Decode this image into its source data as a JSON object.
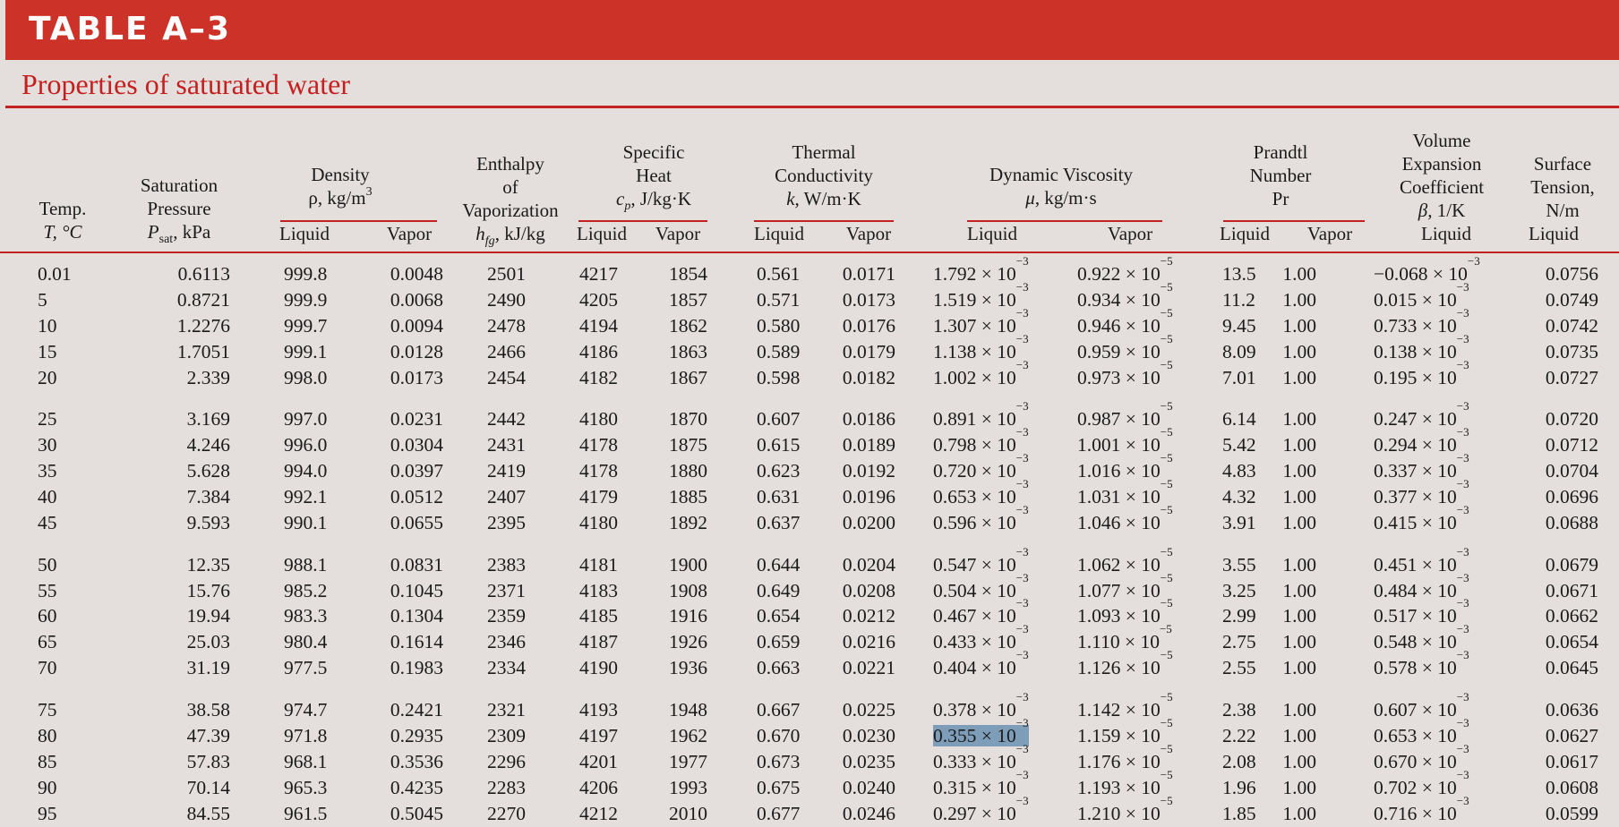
{
  "header": {
    "table_label": "TABLE A–3",
    "subtitle": "Properties of saturated water"
  },
  "columns": {
    "temp": [
      "Temp.",
      "T, °C"
    ],
    "psat": [
      "Saturation",
      "Pressure",
      "P",
      "sat",
      ", kPa"
    ],
    "density": [
      "Density",
      "ρ, kg/m",
      "3"
    ],
    "enthalpy": [
      "Enthalpy",
      "of",
      "Vaporization",
      "h",
      "fg",
      ", kJ/kg"
    ],
    "cp": [
      "Specific",
      "Heat",
      "c",
      "p",
      ", J/kg·K"
    ],
    "k": [
      "Thermal",
      "Conductivity",
      "k,",
      " W/m·K"
    ],
    "mu": [
      "Dynamic Viscosity",
      "μ",
      ", kg/m·s"
    ],
    "pr": [
      "Prandtl",
      "Number",
      "Pr"
    ],
    "beta": [
      "Volume",
      "Expansion",
      "Coefficient",
      "β,",
      " 1/K"
    ],
    "sigma": [
      "Surface",
      "Tension,",
      "N/m"
    ],
    "liquid": "Liquid",
    "vapor": "Vapor"
  },
  "exp_mu_l": "−3",
  "exp_mu_v": "−5",
  "exp_beta": "−3",
  "times": " × 10",
  "rows": [
    [
      "0.01",
      "0.6113",
      "999.8",
      "0.0048",
      "2501",
      "4217",
      "1854",
      "0.561",
      "0.0171",
      "1.792",
      "0.922",
      "13.5",
      "1.00",
      "−0.068",
      "0.0756"
    ],
    [
      "5",
      "0.8721",
      "999.9",
      "0.0068",
      "2490",
      "4205",
      "1857",
      "0.571",
      "0.0173",
      "1.519",
      "0.934",
      "11.2",
      "1.00",
      "0.015",
      "0.0749"
    ],
    [
      "10",
      "1.2276",
      "999.7",
      "0.0094",
      "2478",
      "4194",
      "1862",
      "0.580",
      "0.0176",
      "1.307",
      "0.946",
      "9.45",
      "1.00",
      "0.733",
      "0.0742"
    ],
    [
      "15",
      "1.7051",
      "999.1",
      "0.0128",
      "2466",
      "4186",
      "1863",
      "0.589",
      "0.0179",
      "1.138",
      "0.959",
      "8.09",
      "1.00",
      "0.138",
      "0.0735"
    ],
    [
      "20",
      "2.339",
      "998.0",
      "0.0173",
      "2454",
      "4182",
      "1867",
      "0.598",
      "0.0182",
      "1.002",
      "0.973",
      "7.01",
      "1.00",
      "0.195",
      "0.0727"
    ],
    [
      "25",
      "3.169",
      "997.0",
      "0.0231",
      "2442",
      "4180",
      "1870",
      "0.607",
      "0.0186",
      "0.891",
      "0.987",
      "6.14",
      "1.00",
      "0.247",
      "0.0720"
    ],
    [
      "30",
      "4.246",
      "996.0",
      "0.0304",
      "2431",
      "4178",
      "1875",
      "0.615",
      "0.0189",
      "0.798",
      "1.001",
      "5.42",
      "1.00",
      "0.294",
      "0.0712"
    ],
    [
      "35",
      "5.628",
      "994.0",
      "0.0397",
      "2419",
      "4178",
      "1880",
      "0.623",
      "0.0192",
      "0.720",
      "1.016",
      "4.83",
      "1.00",
      "0.337",
      "0.0704"
    ],
    [
      "40",
      "7.384",
      "992.1",
      "0.0512",
      "2407",
      "4179",
      "1885",
      "0.631",
      "0.0196",
      "0.653",
      "1.031",
      "4.32",
      "1.00",
      "0.377",
      "0.0696"
    ],
    [
      "45",
      "9.593",
      "990.1",
      "0.0655",
      "2395",
      "4180",
      "1892",
      "0.637",
      "0.0200",
      "0.596",
      "1.046",
      "3.91",
      "1.00",
      "0.415",
      "0.0688"
    ],
    [
      "50",
      "12.35",
      "988.1",
      "0.0831",
      "2383",
      "4181",
      "1900",
      "0.644",
      "0.0204",
      "0.547",
      "1.062",
      "3.55",
      "1.00",
      "0.451",
      "0.0679"
    ],
    [
      "55",
      "15.76",
      "985.2",
      "0.1045",
      "2371",
      "4183",
      "1908",
      "0.649",
      "0.0208",
      "0.504",
      "1.077",
      "3.25",
      "1.00",
      "0.484",
      "0.0671"
    ],
    [
      "60",
      "19.94",
      "983.3",
      "0.1304",
      "2359",
      "4185",
      "1916",
      "0.654",
      "0.0212",
      "0.467",
      "1.093",
      "2.99",
      "1.00",
      "0.517",
      "0.0662"
    ],
    [
      "65",
      "25.03",
      "980.4",
      "0.1614",
      "2346",
      "4187",
      "1926",
      "0.659",
      "0.0216",
      "0.433",
      "1.110",
      "2.75",
      "1.00",
      "0.548",
      "0.0654"
    ],
    [
      "70",
      "31.19",
      "977.5",
      "0.1983",
      "2334",
      "4190",
      "1936",
      "0.663",
      "0.0221",
      "0.404",
      "1.126",
      "2.55",
      "1.00",
      "0.578",
      "0.0645"
    ],
    [
      "75",
      "38.58",
      "974.7",
      "0.2421",
      "2321",
      "4193",
      "1948",
      "0.667",
      "0.0225",
      "0.378",
      "1.142",
      "2.38",
      "1.00",
      "0.607",
      "0.0636"
    ],
    [
      "80",
      "47.39",
      "971.8",
      "0.2935",
      "2309",
      "4197",
      "1962",
      "0.670",
      "0.0230",
      "0.355",
      "1.159",
      "2.22",
      "1.00",
      "0.653",
      "0.0627"
    ],
    [
      "85",
      "57.83",
      "968.1",
      "0.3536",
      "2296",
      "4201",
      "1977",
      "0.673",
      "0.0235",
      "0.333",
      "1.176",
      "2.08",
      "1.00",
      "0.670",
      "0.0617"
    ],
    [
      "90",
      "70.14",
      "965.3",
      "0.4235",
      "2283",
      "4206",
      "1993",
      "0.675",
      "0.0240",
      "0.315",
      "1.193",
      "1.96",
      "1.00",
      "0.702",
      "0.0608"
    ],
    [
      "95",
      "84.55",
      "961.5",
      "0.5045",
      "2270",
      "4212",
      "2010",
      "0.677",
      "0.0246",
      "0.297",
      "1.210",
      "1.85",
      "1.00",
      "0.716",
      "0.0599"
    ]
  ],
  "selection": {
    "row": 16,
    "column": "mu_liquid"
  },
  "colors": {
    "banner": "#cc3227",
    "accent": "#c42020",
    "background": "#e4dfdd",
    "highlight": "#7e9db8"
  }
}
